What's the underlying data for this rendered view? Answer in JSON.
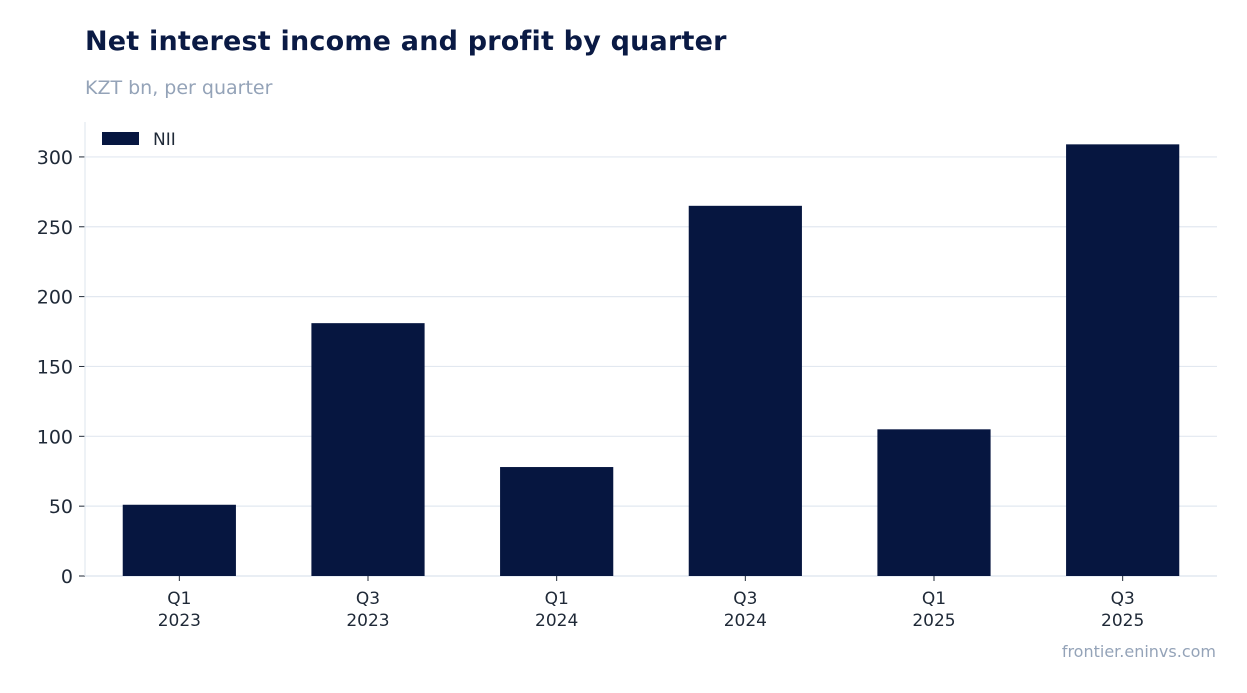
{
  "title": "Net interest income and profit by quarter",
  "subtitle": "KZT bn, per quarter",
  "footer": "frontier.eninvs.com",
  "colors": {
    "bar": "#061640",
    "grid": "#e2e8f0",
    "axis": "#cbd5e1",
    "text": "#1f2937",
    "muted": "#94a3b8"
  },
  "chart_data": {
    "type": "bar",
    "categories": [
      [
        "Q1",
        "2023"
      ],
      [
        "Q3",
        "2023"
      ],
      [
        "Q1",
        "2024"
      ],
      [
        "Q3",
        "2024"
      ],
      [
        "Q1",
        "2025"
      ],
      [
        "Q3",
        "2025"
      ]
    ],
    "series": [
      {
        "name": "NII",
        "values": [
          51,
          181,
          78,
          265,
          105,
          309
        ]
      }
    ],
    "ylim": [
      0,
      325
    ],
    "yticks": [
      0,
      50,
      100,
      150,
      200,
      250,
      300
    ],
    "grid": true,
    "legend": "top-left"
  }
}
